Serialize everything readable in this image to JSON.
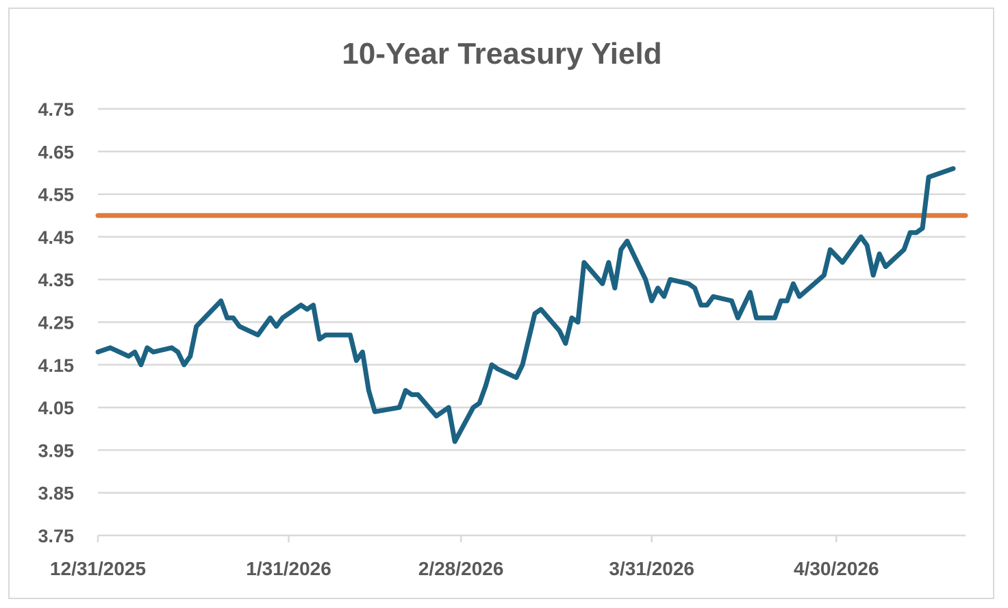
{
  "chart_data": {
    "type": "line",
    "title": "10-Year Treasury Yield",
    "xlabel": "",
    "ylabel": "",
    "ylim": [
      3.75,
      4.75
    ],
    "yticks": [
      "4.75",
      "4.65",
      "4.55",
      "4.45",
      "4.35",
      "4.25",
      "4.15",
      "4.05",
      "3.95",
      "3.85",
      "3.75"
    ],
    "xticks": [
      "12/31/2025",
      "1/31/2026",
      "2/28/2026",
      "3/31/2026",
      "4/30/2026"
    ],
    "xlim": [
      "2025-12-31",
      "2026-05-21"
    ],
    "grid": true,
    "colors": {
      "series": "#1c6283",
      "reference": "#e07a3c",
      "grid": "#d9d9d9",
      "text": "#595959"
    },
    "reference_line": {
      "value": 4.5
    },
    "series": [
      {
        "points": [
          [
            "2025-12-31",
            4.18
          ],
          [
            "2026-01-02",
            4.19
          ],
          [
            "2026-01-05",
            4.17
          ],
          [
            "2026-01-06",
            4.18
          ],
          [
            "2026-01-07",
            4.15
          ],
          [
            "2026-01-08",
            4.19
          ],
          [
            "2026-01-09",
            4.18
          ],
          [
            "2026-01-12",
            4.19
          ],
          [
            "2026-01-13",
            4.18
          ],
          [
            "2026-01-14",
            4.15
          ],
          [
            "2026-01-15",
            4.17
          ],
          [
            "2026-01-16",
            4.24
          ],
          [
            "2026-01-20",
            4.3
          ],
          [
            "2026-01-21",
            4.26
          ],
          [
            "2026-01-22",
            4.26
          ],
          [
            "2026-01-23",
            4.24
          ],
          [
            "2026-01-26",
            4.22
          ],
          [
            "2026-01-27",
            4.24
          ],
          [
            "2026-01-28",
            4.26
          ],
          [
            "2026-01-29",
            4.24
          ],
          [
            "2026-01-30",
            4.26
          ],
          [
            "2026-02-02",
            4.29
          ],
          [
            "2026-02-03",
            4.28
          ],
          [
            "2026-02-04",
            4.29
          ],
          [
            "2026-02-05",
            4.21
          ],
          [
            "2026-02-06",
            4.22
          ],
          [
            "2026-02-09",
            4.22
          ],
          [
            "2026-02-10",
            4.22
          ],
          [
            "2026-02-11",
            4.16
          ],
          [
            "2026-02-12",
            4.18
          ],
          [
            "2026-02-13",
            4.09
          ],
          [
            "2026-02-14",
            4.04
          ],
          [
            "2026-02-18",
            4.05
          ],
          [
            "2026-02-19",
            4.09
          ],
          [
            "2026-02-20",
            4.08
          ],
          [
            "2026-02-21",
            4.08
          ],
          [
            "2026-02-24",
            4.03
          ],
          [
            "2026-02-26",
            4.05
          ],
          [
            "2026-02-27",
            3.97
          ],
          [
            "2026-03-02",
            4.05
          ],
          [
            "2026-03-03",
            4.06
          ],
          [
            "2026-03-04",
            4.1
          ],
          [
            "2026-03-05",
            4.15
          ],
          [
            "2026-03-06",
            4.14
          ],
          [
            "2026-03-09",
            4.12
          ],
          [
            "2026-03-10",
            4.15
          ],
          [
            "2026-03-12",
            4.27
          ],
          [
            "2026-03-13",
            4.28
          ],
          [
            "2026-03-16",
            4.23
          ],
          [
            "2026-03-17",
            4.2
          ],
          [
            "2026-03-18",
            4.26
          ],
          [
            "2026-03-19",
            4.25
          ],
          [
            "2026-03-20",
            4.39
          ],
          [
            "2026-03-23",
            4.34
          ],
          [
            "2026-03-24",
            4.39
          ],
          [
            "2026-03-25",
            4.33
          ],
          [
            "2026-03-26",
            4.42
          ],
          [
            "2026-03-27",
            4.44
          ],
          [
            "2026-03-30",
            4.35
          ],
          [
            "2026-03-31",
            4.3
          ],
          [
            "2026-04-01",
            4.33
          ],
          [
            "2026-04-02",
            4.31
          ],
          [
            "2026-04-03",
            4.35
          ],
          [
            "2026-04-06",
            4.34
          ],
          [
            "2026-04-07",
            4.33
          ],
          [
            "2026-04-08",
            4.29
          ],
          [
            "2026-04-09",
            4.29
          ],
          [
            "2026-04-10",
            4.31
          ],
          [
            "2026-04-13",
            4.3
          ],
          [
            "2026-04-14",
            4.26
          ],
          [
            "2026-04-15",
            4.29
          ],
          [
            "2026-04-16",
            4.32
          ],
          [
            "2026-04-17",
            4.26
          ],
          [
            "2026-04-20",
            4.26
          ],
          [
            "2026-04-21",
            4.3
          ],
          [
            "2026-04-22",
            4.3
          ],
          [
            "2026-04-23",
            4.34
          ],
          [
            "2026-04-24",
            4.31
          ],
          [
            "2026-04-28",
            4.36
          ],
          [
            "2026-04-29",
            4.42
          ],
          [
            "2026-05-01",
            4.39
          ],
          [
            "2026-05-04",
            4.45
          ],
          [
            "2026-05-05",
            4.43
          ],
          [
            "2026-05-06",
            4.36
          ],
          [
            "2026-05-07",
            4.41
          ],
          [
            "2026-05-08",
            4.38
          ],
          [
            "2026-05-11",
            4.42
          ],
          [
            "2026-05-12",
            4.46
          ],
          [
            "2026-05-13",
            4.46
          ],
          [
            "2026-05-14",
            4.47
          ],
          [
            "2026-05-15",
            4.59
          ],
          [
            "2026-05-19",
            4.61
          ]
        ]
      }
    ]
  }
}
